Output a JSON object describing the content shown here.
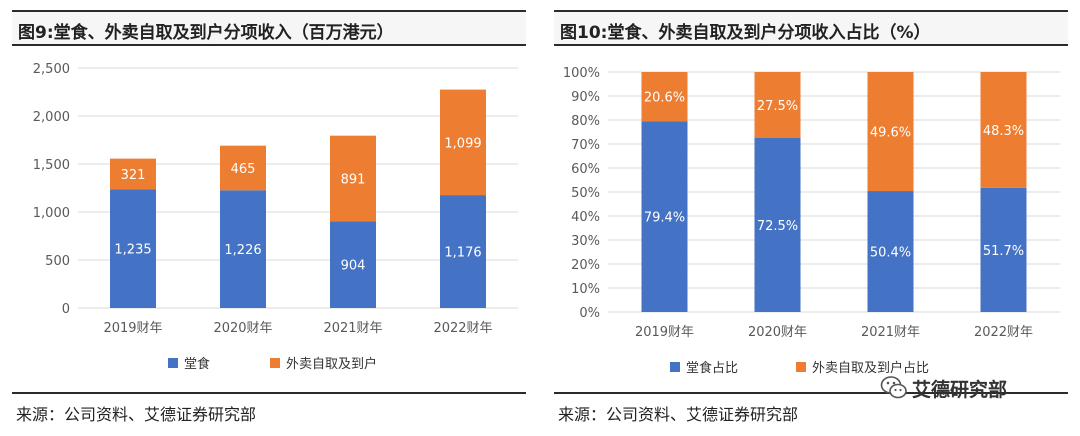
{
  "colors": {
    "dine_in": "#4472C4",
    "delivery": "#ED7D31",
    "grid": "#d9d9d9",
    "axis_text": "#595959"
  },
  "left": {
    "title": "图9:堂食、外卖自取及到户分项收入（百万港元）",
    "source": "来源：公司资料、艾德证券研究部"
  },
  "right": {
    "title": "图10:堂食、外卖自取及到户分项收入占比（%）",
    "source": "来源：公司资料、艾德证券研究部"
  },
  "watermark": {
    "text": "艾德研究部",
    "icon": "wechat-icon"
  },
  "chart_data": [
    {
      "type": "bar",
      "stacked": true,
      "categories": [
        "2019财年",
        "2020财年",
        "2021财年",
        "2022财年"
      ],
      "series": [
        {
          "name": "堂食",
          "values": [
            1235,
            1226,
            904,
            1176
          ],
          "labels": [
            "1,235",
            "1,226",
            "904",
            "1,176"
          ],
          "color": "#4472C4"
        },
        {
          "name": "外卖自取及到户",
          "values": [
            321,
            465,
            891,
            1099
          ],
          "labels": [
            "321",
            "465",
            "891",
            "1,099"
          ],
          "color": "#ED7D31"
        }
      ],
      "yticks": [
        "0",
        "500",
        "1,000",
        "1,500",
        "2,000",
        "2,500"
      ],
      "ylim": [
        0,
        2500
      ],
      "grid": true,
      "legend": "bottom"
    },
    {
      "type": "bar",
      "stacked": true,
      "categories": [
        "2019财年",
        "2020财年",
        "2021财年",
        "2022财年"
      ],
      "series": [
        {
          "name": "堂食占比",
          "values": [
            79.4,
            72.5,
            50.4,
            51.7
          ],
          "labels": [
            "79.4%",
            "72.5%",
            "50.4%",
            "51.7%"
          ],
          "color": "#4472C4"
        },
        {
          "name": "外卖自取及到户占比",
          "values": [
            20.6,
            27.5,
            49.6,
            48.3
          ],
          "labels": [
            "20.6%",
            "27.5%",
            "49.6%",
            "48.3%"
          ],
          "color": "#ED7D31"
        }
      ],
      "yticks": [
        "0%",
        "10%",
        "20%",
        "30%",
        "40%",
        "50%",
        "60%",
        "70%",
        "80%",
        "90%",
        "100%"
      ],
      "ylim": [
        0,
        100
      ],
      "grid": true,
      "legend": "bottom"
    }
  ]
}
